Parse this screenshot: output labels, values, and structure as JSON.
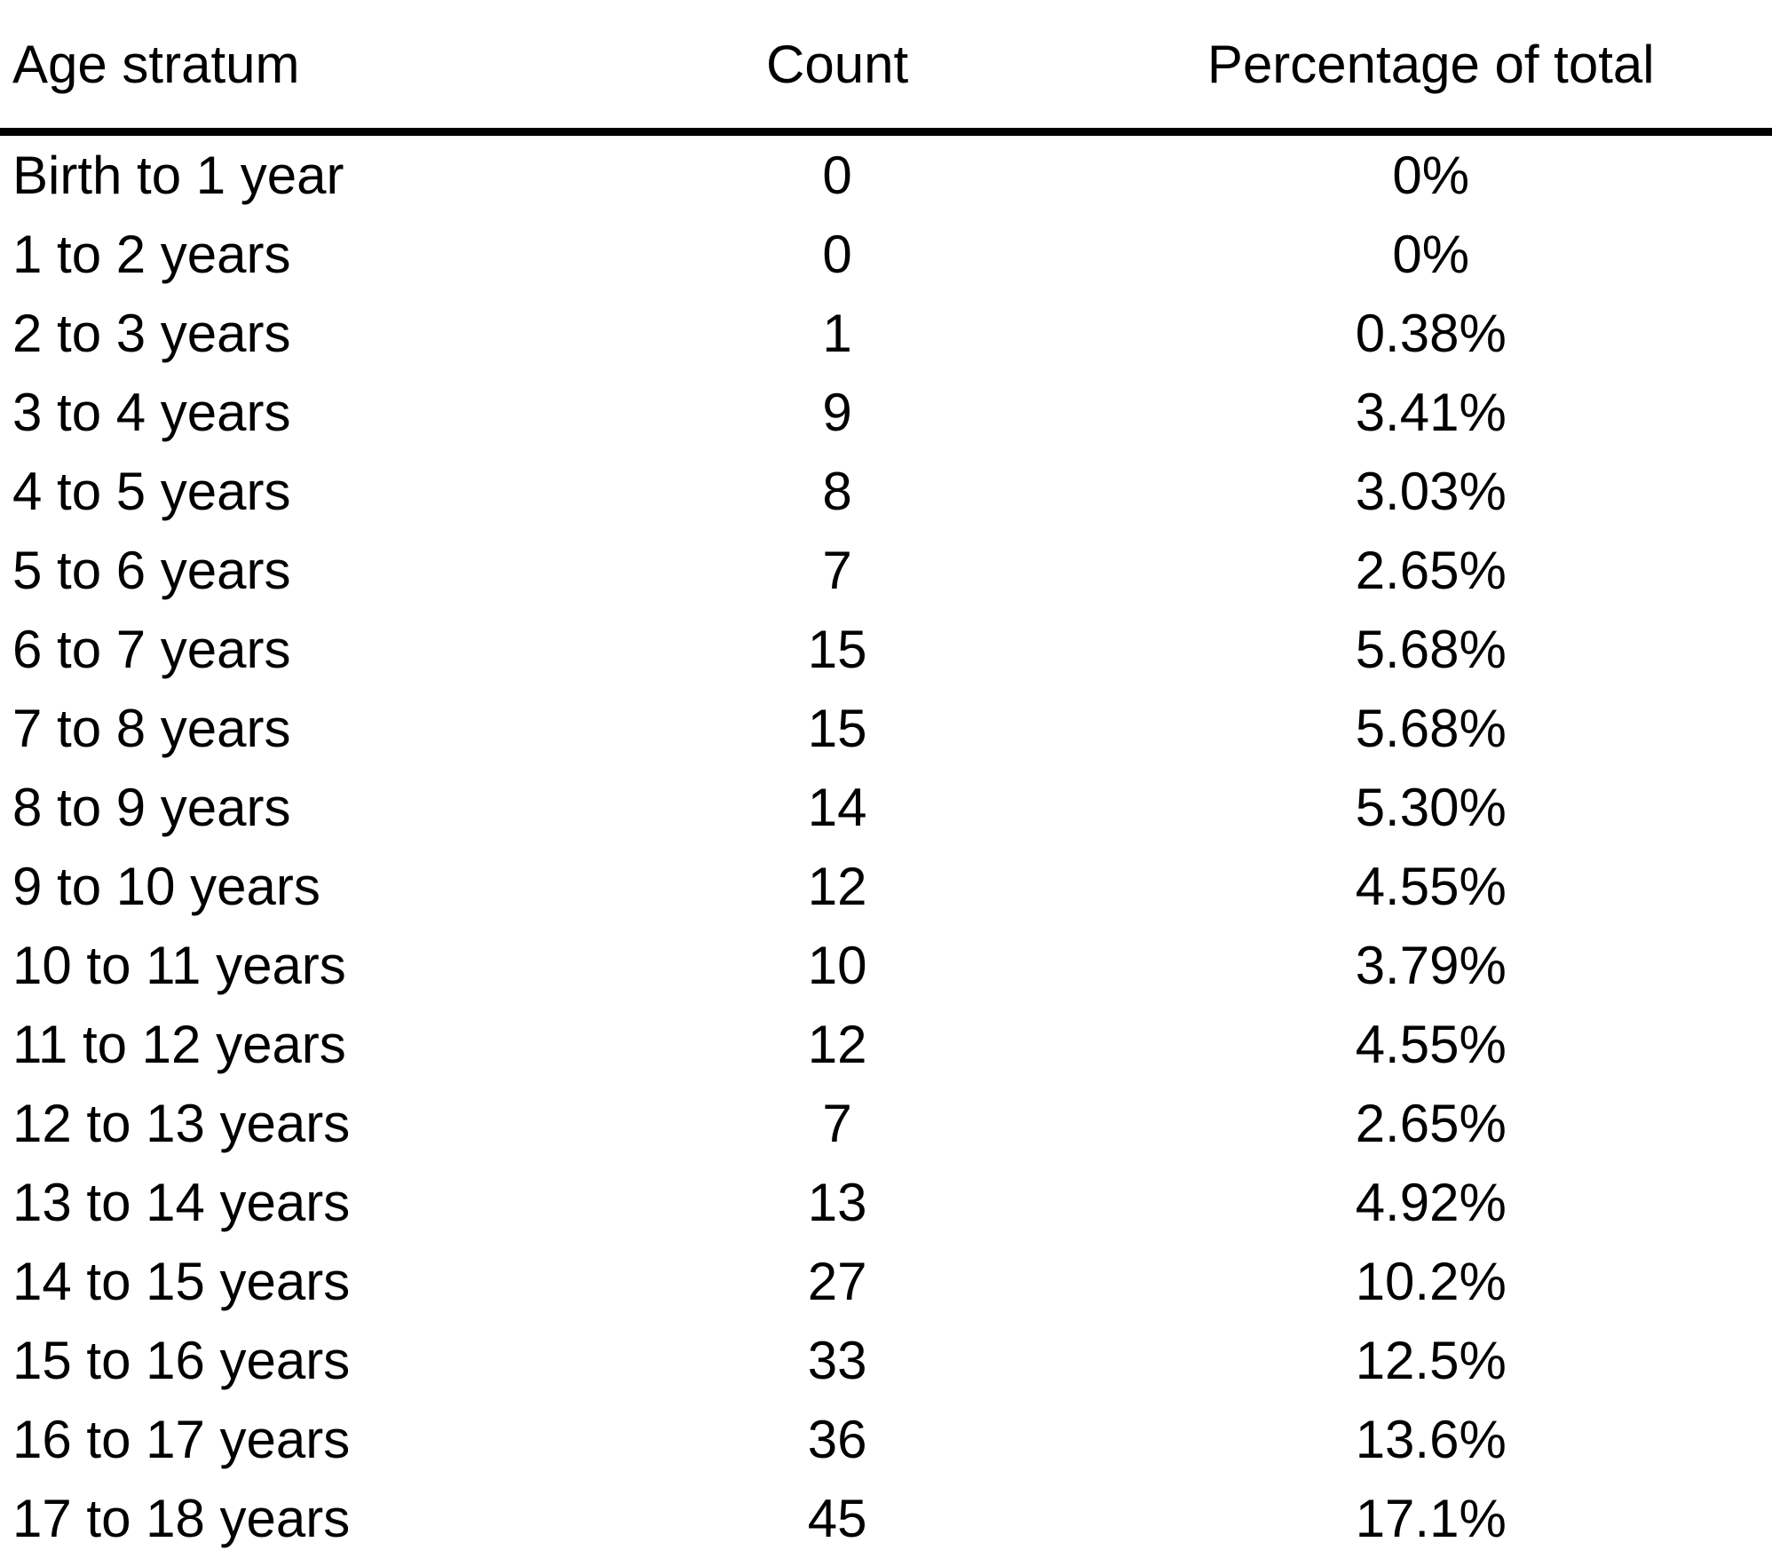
{
  "chart_data": {
    "type": "table",
    "columns": [
      "Age stratum",
      "Count",
      "Percentage of total"
    ],
    "rows": [
      [
        "Birth to 1 year",
        "0",
        "0%"
      ],
      [
        "1 to 2 years",
        "0",
        "0%"
      ],
      [
        "2 to 3 years",
        "1",
        "0.38%"
      ],
      [
        "3 to 4 years",
        "9",
        "3.41%"
      ],
      [
        "4 to 5 years",
        "8",
        "3.03%"
      ],
      [
        "5 to 6 years",
        "7",
        "2.65%"
      ],
      [
        "6 to 7 years",
        "15",
        "5.68%"
      ],
      [
        "7 to 8 years",
        "15",
        "5.68%"
      ],
      [
        "8 to 9 years",
        "14",
        "5.30%"
      ],
      [
        "9 to 10 years",
        "12",
        "4.55%"
      ],
      [
        "10 to 11 years",
        "10",
        "3.79%"
      ],
      [
        "11 to 12 years",
        "12",
        "4.55%"
      ],
      [
        "12 to 13 years",
        "7",
        "2.65%"
      ],
      [
        "13 to 14 years",
        "13",
        "4.92%"
      ],
      [
        "14 to 15 years",
        "27",
        "10.2%"
      ],
      [
        "15 to 16 years",
        "33",
        "12.5%"
      ],
      [
        "16 to 17 years",
        "36",
        "13.6%"
      ],
      [
        "17 to 18 years",
        "45",
        "17.1%"
      ]
    ]
  },
  "colors": {
    "text": "#000000",
    "background": "#ffffff",
    "header_rule": "#000000"
  }
}
